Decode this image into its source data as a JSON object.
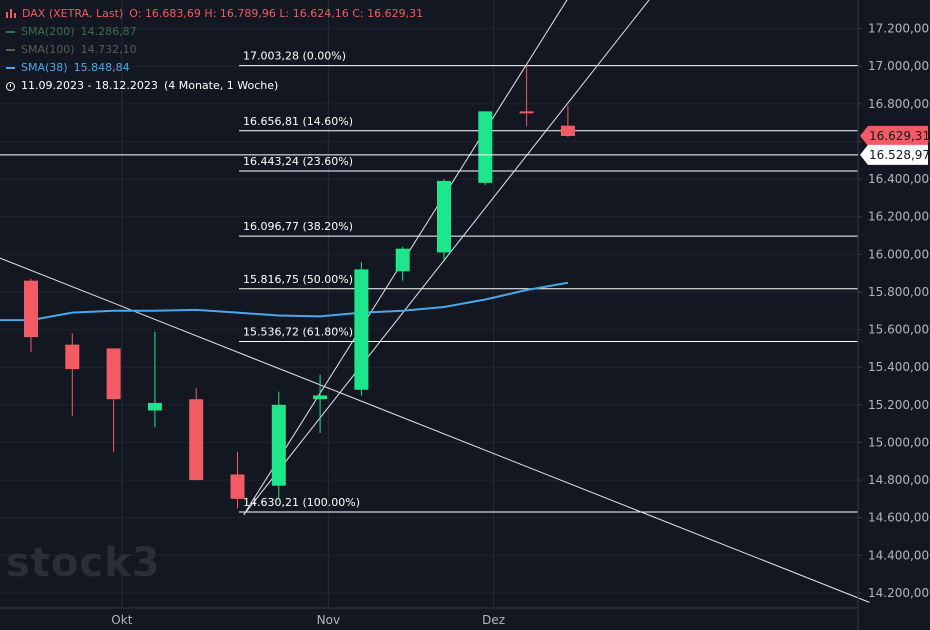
{
  "legend": {
    "symbol": "DAX (XETRA, Last)",
    "open_label": "O:",
    "open": "16.683,69",
    "high_label": "H:",
    "high": "16.789,96",
    "low_label": "L:",
    "low": "16.624,16",
    "close_label": "C:",
    "close": "16.629,31",
    "sma200_label": "SMA(200)",
    "sma200_value": "14.286,87",
    "sma100_label": "SMA(100)",
    "sma100_value": "14.732,10",
    "sma38_label": "SMA(38)",
    "sma38_value": "15.848,84",
    "range": "11.09.2023 - 18.12.2023",
    "range_duration": "(4 Monate, 1 Woche)"
  },
  "colors": {
    "background": "#131722",
    "up": "#1ee68c",
    "down": "#f05b64",
    "sma38": "#4aa8e8",
    "sma_dim": "#3d6b4f",
    "fib": "#ffffff",
    "grid": "#363a45",
    "price_badge": "#f05b64"
  },
  "watermark": "stock3",
  "chart_data": {
    "type": "candlestick",
    "title": "DAX (XETRA, Last)",
    "ylim": [
      14120,
      17320
    ],
    "y_ticks": [
      "17.200,00",
      "17.000,00",
      "16.800,00",
      "16.600,00",
      "16.400,00",
      "16.200,00",
      "16.000,00",
      "15.800,00",
      "15.600,00",
      "15.400,00",
      "15.200,00",
      "15.000,00",
      "14.800,00",
      "14.600,00",
      "14.400,00",
      "14.200,00"
    ],
    "y_tick_values": [
      17200,
      17000,
      16800,
      16600,
      16400,
      16200,
      16000,
      15800,
      15600,
      15400,
      15200,
      15000,
      14800,
      14600,
      14400,
      14200
    ],
    "x_labels": [
      {
        "label": "Okt",
        "index": 2.2
      },
      {
        "label": "Nov",
        "index": 7.2
      },
      {
        "label": "Dez",
        "index": 11.2
      }
    ],
    "candles": [
      {
        "o": 15860,
        "h": 15870,
        "l": 15480,
        "c": 15560
      },
      {
        "o": 15520,
        "h": 15580,
        "l": 15140,
        "c": 15390
      },
      {
        "o": 15500,
        "h": 15500,
        "l": 14950,
        "c": 15230
      },
      {
        "o": 15170,
        "h": 15590,
        "l": 15080,
        "c": 15210
      },
      {
        "o": 15230,
        "h": 15290,
        "l": 14800,
        "c": 14800
      },
      {
        "o": 14830,
        "h": 14950,
        "l": 14650,
        "c": 14700
      },
      {
        "o": 14770,
        "h": 15270,
        "l": 14700,
        "c": 15200
      },
      {
        "o": 15230,
        "h": 15360,
        "l": 15050,
        "c": 15250
      },
      {
        "o": 15280,
        "h": 15960,
        "l": 15250,
        "c": 15920
      },
      {
        "o": 15910,
        "h": 16040,
        "l": 15860,
        "c": 16030
      },
      {
        "o": 16010,
        "h": 16400,
        "l": 15960,
        "c": 16390
      },
      {
        "o": 16380,
        "h": 16760,
        "l": 16370,
        "c": 16760
      },
      {
        "o": 16760,
        "h": 17003,
        "l": 16680,
        "c": 16750
      },
      {
        "o": 16684,
        "h": 16790,
        "l": 16624,
        "c": 16629
      }
    ],
    "sma38": [
      15650,
      15690,
      15700,
      15700,
      15705,
      15690,
      15675,
      15670,
      15690,
      15700,
      15720,
      15760,
      15810,
      15849
    ],
    "fib_levels": [
      {
        "label": "17.003,28 (0.00%)",
        "value": 17003.28
      },
      {
        "label": "16.656,81 (14.60%)",
        "value": 16656.81
      },
      {
        "label": "16.443,24 (23.60%)",
        "value": 16443.24
      },
      {
        "label": "16.096,77 (38.20%)",
        "value": 16096.77
      },
      {
        "label": "15.816,75 (50.00%)",
        "value": 15816.75
      },
      {
        "label": "15.536,72 (61.80%)",
        "value": 15536.72
      },
      {
        "label": "14.630,21 (100.00%)",
        "value": 14630.21
      }
    ],
    "price_markers": [
      {
        "label": "16.629,31",
        "value": 16629.31,
        "style": "last"
      },
      {
        "label": "16.528,97",
        "value": 16528.97,
        "style": "level"
      }
    ]
  }
}
